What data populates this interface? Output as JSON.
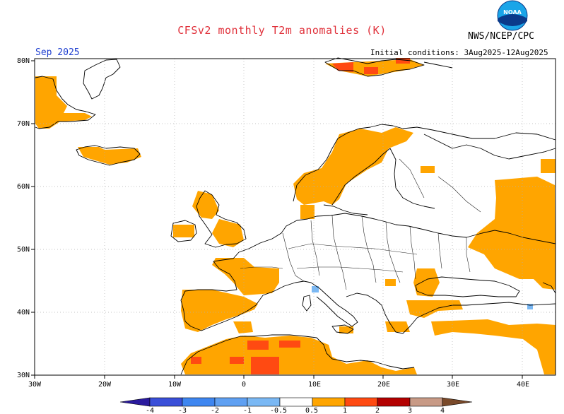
{
  "title": "CFSv2 monthly T2m anomalies (K)",
  "agency": "NWS/NCEP/CPC",
  "valid_month": "Sep 2025",
  "initial_conditions": "Initial conditions: 3Aug2025-12Aug2025",
  "logo_text": "NOAA",
  "lat_labels": [
    "80N",
    "70N",
    "60N",
    "50N",
    "40N",
    "30N"
  ],
  "lon_labels": [
    "30W",
    "20W",
    "10W",
    "0",
    "10E",
    "20E",
    "30E",
    "40E"
  ],
  "colorbar": {
    "labels": [
      "-4",
      "-3",
      "-2",
      "-1",
      "-0.5",
      "0.5",
      "1",
      "2",
      "3",
      "4"
    ],
    "colors": [
      "#2a1a9e",
      "#3a4fd8",
      "#3e86f0",
      "#7ab8f4",
      "#ffffff",
      "#ffa500",
      "#ff4a12",
      "#b30000",
      "#c89a86",
      "#7a4a2a"
    ]
  },
  "colors": {
    "ocean": "#ffffff",
    "land_outline": "#000000",
    "anomaly_0_5_to_1": "#ffa500",
    "anomaly_1_to_2": "#ff4a12",
    "anomaly_neg_0_5_to_neg_1": "#7ab8f4",
    "title_red": "#e0303a",
    "month_blue": "#1f3fd0"
  }
}
